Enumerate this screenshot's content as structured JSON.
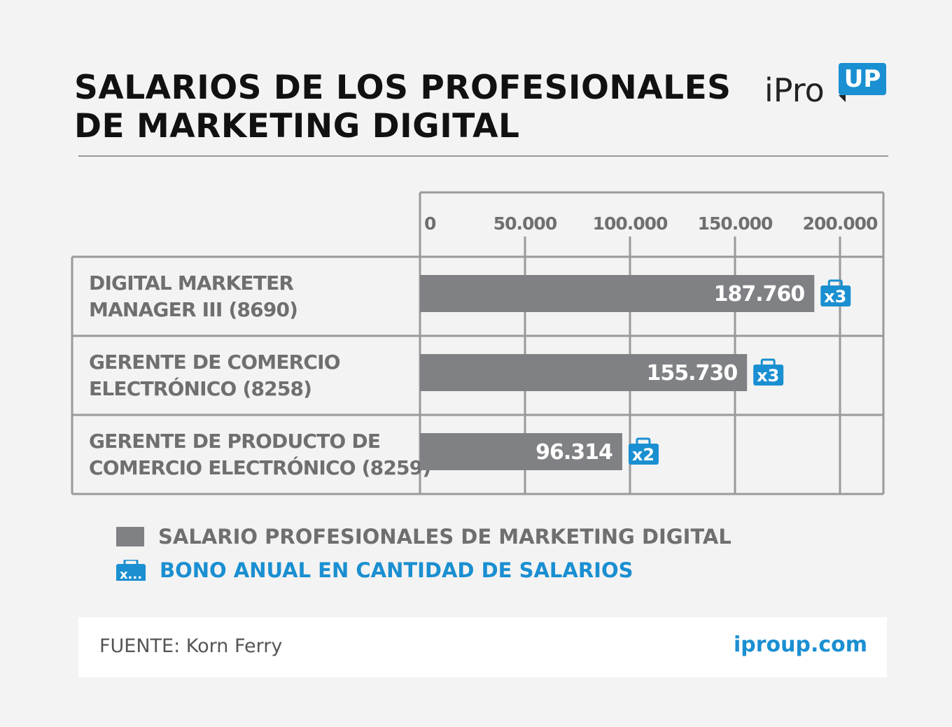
{
  "header": {
    "title_line1": "SALARIOS DE LOS PROFESIONALES",
    "title_line2": "DE MARKETING DIGITAL",
    "logo_text": "iPro",
    "logo_badge": "UP"
  },
  "chart_data": {
    "type": "bar",
    "orientation": "horizontal",
    "categories": [
      [
        "DIGITAL MARKETER",
        "MANAGER III (8690)"
      ],
      [
        "GERENTE DE COMERCIO",
        "ELECTRÓNICO (8258)"
      ],
      [
        "GERENTE DE PRODUCTO DE",
        "COMERCIO ELECTRÓNICO (8259)"
      ]
    ],
    "series": [
      {
        "name": "SALARIO PROFESIONALES DE MARKETING DIGITAL",
        "values": [
          187760,
          155730,
          96314
        ],
        "labels": [
          "187.760",
          "155.730",
          "96.314"
        ],
        "color": "#808184"
      },
      {
        "name": "BONO ANUAL EN CANTIDAD DE SALARIOS",
        "values": [
          3,
          3,
          2
        ],
        "labels": [
          "x3",
          "x3",
          "x2"
        ],
        "color": "#1a8fd1"
      }
    ],
    "xlim": [
      0,
      220000
    ],
    "xticks": [
      0,
      50000,
      100000,
      150000,
      200000
    ],
    "xtick_labels": [
      "0",
      "50.000",
      "100.000",
      "150.000",
      "200.000"
    ],
    "grid": true,
    "legend_position": "bottom-left"
  },
  "legend": {
    "salary_label": "SALARIO PROFESIONALES DE MARKETING DIGITAL",
    "bonus_label": "BONO ANUAL EN CANTIDAD DE SALARIOS",
    "bonus_icon_text": "x..."
  },
  "footer": {
    "source": "FUENTE: Korn Ferry",
    "site": "iproup.com"
  },
  "colors": {
    "bar": "#808184",
    "accent": "#1a8fd1",
    "grid": "#9a9a9a",
    "label_text": "#6f6f6f"
  }
}
